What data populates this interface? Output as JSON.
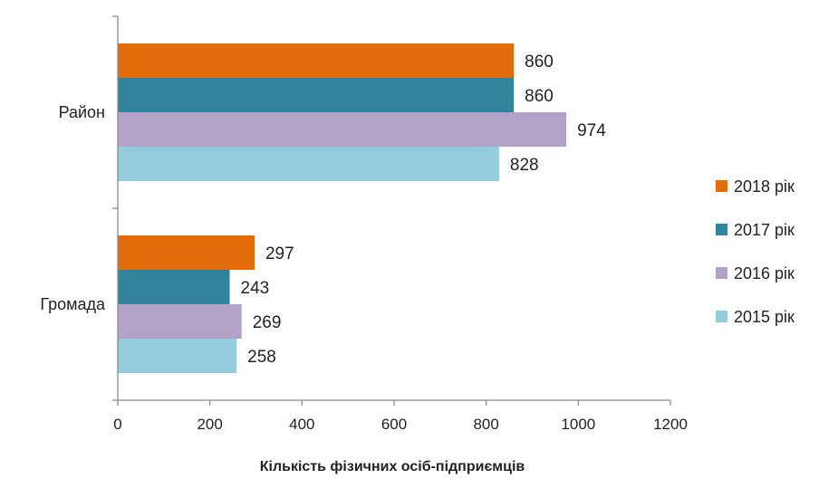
{
  "chart_data": {
    "type": "bar",
    "orientation": "horizontal",
    "categories": [
      "Район",
      "Громада"
    ],
    "series": [
      {
        "name": "2018 рік",
        "color": "#E36C0A",
        "values": [
          860,
          297
        ]
      },
      {
        "name": "2017 рік",
        "color": "#31849B",
        "values": [
          860,
          243
        ]
      },
      {
        "name": "2016 рік",
        "color": "#B3A2C7",
        "values": [
          974,
          269
        ]
      },
      {
        "name": "2015 рік",
        "color": "#93CDDD",
        "values": [
          828,
          258
        ]
      }
    ],
    "xlabel": "Кількість фізичних осіб-підприємців",
    "xlim": [
      0,
      1200
    ],
    "xticks": [
      "0",
      "200",
      "400",
      "600",
      "800",
      "1000",
      "1200"
    ],
    "grid": false,
    "legend": "right"
  }
}
